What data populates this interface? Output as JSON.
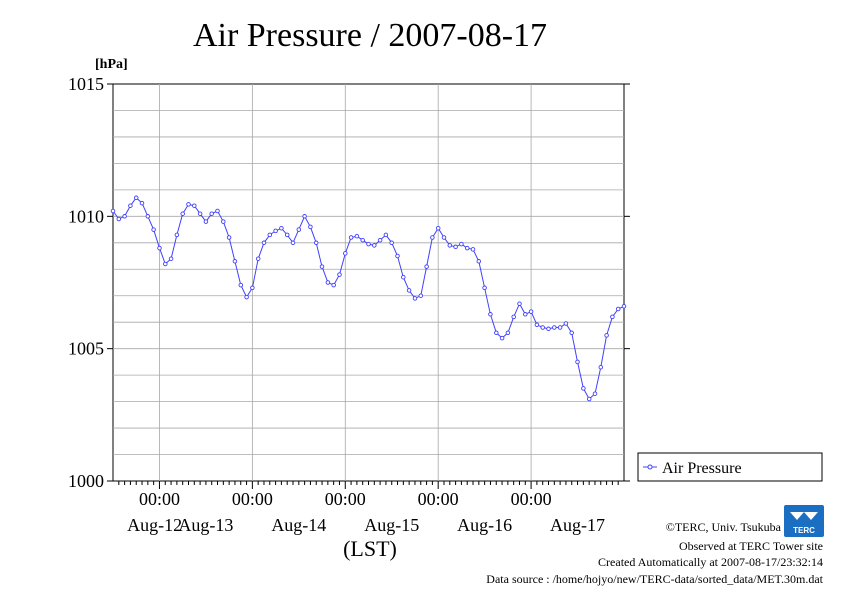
{
  "chart_data": {
    "type": "line",
    "title": "Air Pressure / 2007-08-17",
    "ylabel": "[hPa]",
    "xlabel": "(LST)",
    "ylim": [
      1000,
      1015
    ],
    "y_ticks": [
      "1000",
      "1005",
      "1010",
      "1015"
    ],
    "x_time_ticks": [
      "00:00",
      "00:00",
      "00:00",
      "00:00",
      "00:00"
    ],
    "x_day_labels": [
      "Aug-12",
      "Aug-13",
      "Aug-14",
      "Aug-15",
      "Aug-16",
      "Aug-17"
    ],
    "grid": true,
    "legend_position": "right",
    "series": [
      {
        "name": "Air Pressure",
        "color": "#4040ff",
        "marker": "circle-open",
        "points": [
          [
            0,
            1010.2
          ],
          [
            6,
            1009.9
          ],
          [
            12,
            1010.0
          ],
          [
            18,
            1010.4
          ],
          [
            24,
            1010.7
          ],
          [
            30,
            1010.5
          ],
          [
            36,
            1010.0
          ],
          [
            42,
            1009.5
          ],
          [
            48,
            1008.8
          ],
          [
            54,
            1008.2
          ],
          [
            60,
            1008.4
          ],
          [
            66,
            1009.3
          ],
          [
            72,
            1010.1
          ],
          [
            78,
            1010.45
          ],
          [
            84,
            1010.4
          ],
          [
            90,
            1010.1
          ],
          [
            96,
            1009.8
          ],
          [
            102,
            1010.1
          ],
          [
            108,
            1010.2
          ],
          [
            114,
            1009.8
          ],
          [
            120,
            1009.2
          ],
          [
            126,
            1008.3
          ],
          [
            132,
            1007.4
          ],
          [
            138,
            1006.95
          ],
          [
            144,
            1007.3
          ],
          [
            150,
            1008.4
          ],
          [
            156,
            1009.0
          ],
          [
            162,
            1009.3
          ],
          [
            168,
            1009.45
          ],
          [
            174,
            1009.55
          ],
          [
            180,
            1009.3
          ],
          [
            186,
            1009.0
          ],
          [
            192,
            1009.5
          ],
          [
            198,
            1010.0
          ],
          [
            204,
            1009.6
          ],
          [
            210,
            1009.0
          ],
          [
            216,
            1008.1
          ],
          [
            222,
            1007.5
          ],
          [
            228,
            1007.4
          ],
          [
            234,
            1007.8
          ],
          [
            240,
            1008.6
          ],
          [
            246,
            1009.2
          ],
          [
            252,
            1009.25
          ],
          [
            258,
            1009.1
          ],
          [
            264,
            1008.95
          ],
          [
            270,
            1008.9
          ],
          [
            276,
            1009.1
          ],
          [
            282,
            1009.3
          ],
          [
            288,
            1009.0
          ],
          [
            294,
            1008.5
          ],
          [
            300,
            1007.7
          ],
          [
            306,
            1007.2
          ],
          [
            312,
            1006.9
          ],
          [
            318,
            1007.0
          ],
          [
            324,
            1008.1
          ],
          [
            330,
            1009.2
          ],
          [
            336,
            1009.55
          ],
          [
            342,
            1009.2
          ],
          [
            348,
            1008.9
          ],
          [
            354,
            1008.85
          ],
          [
            360,
            1008.95
          ],
          [
            366,
            1008.8
          ],
          [
            372,
            1008.75
          ],
          [
            378,
            1008.3
          ],
          [
            384,
            1007.3
          ],
          [
            390,
            1006.3
          ],
          [
            396,
            1005.6
          ],
          [
            402,
            1005.4
          ],
          [
            408,
            1005.6
          ],
          [
            414,
            1006.2
          ],
          [
            420,
            1006.7
          ],
          [
            426,
            1006.3
          ],
          [
            432,
            1006.4
          ],
          [
            438,
            1005.9
          ],
          [
            444,
            1005.8
          ],
          [
            450,
            1005.75
          ],
          [
            456,
            1005.8
          ],
          [
            462,
            1005.8
          ],
          [
            468,
            1005.95
          ],
          [
            474,
            1005.6
          ],
          [
            480,
            1004.5
          ],
          [
            486,
            1003.5
          ],
          [
            492,
            1003.1
          ],
          [
            498,
            1003.3
          ],
          [
            504,
            1004.3
          ],
          [
            510,
            1005.5
          ],
          [
            516,
            1006.2
          ],
          [
            522,
            1006.5
          ],
          [
            528,
            1006.6
          ]
        ]
      }
    ]
  },
  "footer": {
    "copyright": "©TERC, Univ. Tsukuba",
    "observed": "Observed at TERC Tower site",
    "created": "Created Automatically at 2007-08-17/23:32:14",
    "source": "Data source : /home/hojyo/new/TERC-data/sorted_data/MET.30m.dat",
    "logo_text": "TERC"
  }
}
